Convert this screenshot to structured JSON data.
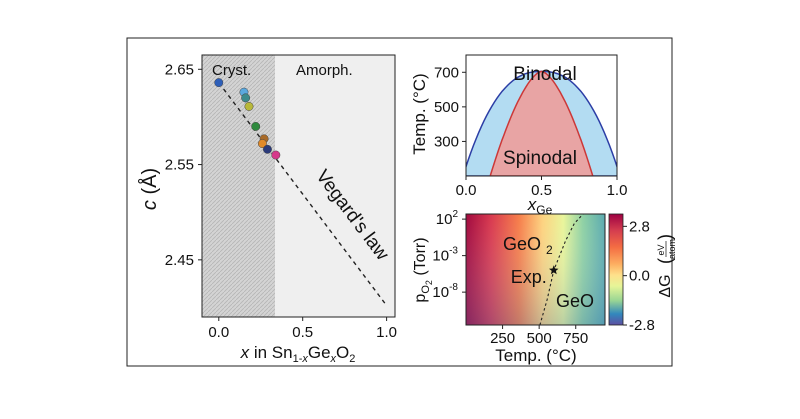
{
  "chart_data": [
    {
      "type": "scatter",
      "xlabel": "x in Sn1-xGexO2",
      "ylabel": "c (Å)",
      "xlim": [
        -0.1,
        1.05
      ],
      "ylim": [
        2.39,
        2.665
      ],
      "xticks": [
        "0.0",
        "0.5",
        "1.0"
      ],
      "yticks": [
        "2.45",
        "2.55",
        "2.65"
      ],
      "regions": [
        {
          "label": "Cryst.",
          "x_range": [
            -0.1,
            0.37
          ],
          "fill": "#d4d4d4"
        },
        {
          "label": "Amorph.",
          "x_range": [
            0.37,
            1.05
          ],
          "fill": "#efefef"
        }
      ],
      "fit_line": {
        "label": "Vegard's law",
        "x": [
          0.0,
          1.0
        ],
        "y": [
          2.636,
          2.402
        ]
      },
      "points": [
        {
          "x": 0.0,
          "y": 2.636,
          "color": "#2e5fb8"
        },
        {
          "x": 0.15,
          "y": 2.626,
          "color": "#5aa8de"
        },
        {
          "x": 0.16,
          "y": 2.62,
          "color": "#3c8a8c"
        },
        {
          "x": 0.18,
          "y": 2.611,
          "color": "#b8b83a"
        },
        {
          "x": 0.22,
          "y": 2.59,
          "color": "#2f8a3e"
        },
        {
          "x": 0.27,
          "y": 2.577,
          "color": "#a86a28"
        },
        {
          "x": 0.26,
          "y": 2.572,
          "color": "#e08a2a"
        },
        {
          "x": 0.29,
          "y": 2.566,
          "color": "#2a3a7a"
        },
        {
          "x": 0.34,
          "y": 2.56,
          "color": "#d63a8a"
        }
      ]
    },
    {
      "type": "area",
      "xlabel": "xGe",
      "ylabel": "Temp. (°C)",
      "xlim": [
        0.0,
        1.0
      ],
      "ylim": [
        100,
        800
      ],
      "xticks": [
        "0.0",
        "0.5",
        "1.0"
      ],
      "yticks": [
        "300",
        "500",
        "700"
      ],
      "series": [
        {
          "name": "Binodal",
          "peak": {
            "x": 0.5,
            "y": 705
          },
          "fill": "#b3dcf2",
          "edge": "#2c3ea6",
          "label_color": "#2c3ea6"
        },
        {
          "name": "Spinodal",
          "peak": {
            "x": 0.5,
            "y": 705
          },
          "x_range_at_ymin": [
            0.16,
            0.84
          ],
          "fill": "#e8a4a4",
          "edge": "#cc3838",
          "label_color": "#b82e2e"
        }
      ]
    },
    {
      "type": "heatmap",
      "xlabel": "Temp. (°C)",
      "ylabel": "pO2 (Torr)",
      "xlim": [
        0,
        950
      ],
      "ylim_log10": [
        -12.5,
        2.7
      ],
      "xticks": [
        "250",
        "500",
        "750"
      ],
      "yticks": [
        "10^2",
        "10^-3",
        "10^-8"
      ],
      "phase_labels": [
        "GeO2",
        "GeO"
      ],
      "marker": {
        "label": "Exp.",
        "temp": 600,
        "log10_pO2": -5.0
      },
      "boundary": {
        "temp": [
          505,
          555,
          600,
          680,
          740,
          800
        ],
        "log10_pO2": [
          -12.5,
          -9.0,
          -5.0,
          -1.0,
          1.4,
          2.7
        ]
      },
      "colorbar": {
        "label": "ΔG (eV/atom)",
        "vmin": -2.8,
        "vmax": 3.5,
        "ticks": [
          "2.8",
          "0.0",
          "-2.8"
        ],
        "cmap": "Spectral_r"
      }
    }
  ]
}
